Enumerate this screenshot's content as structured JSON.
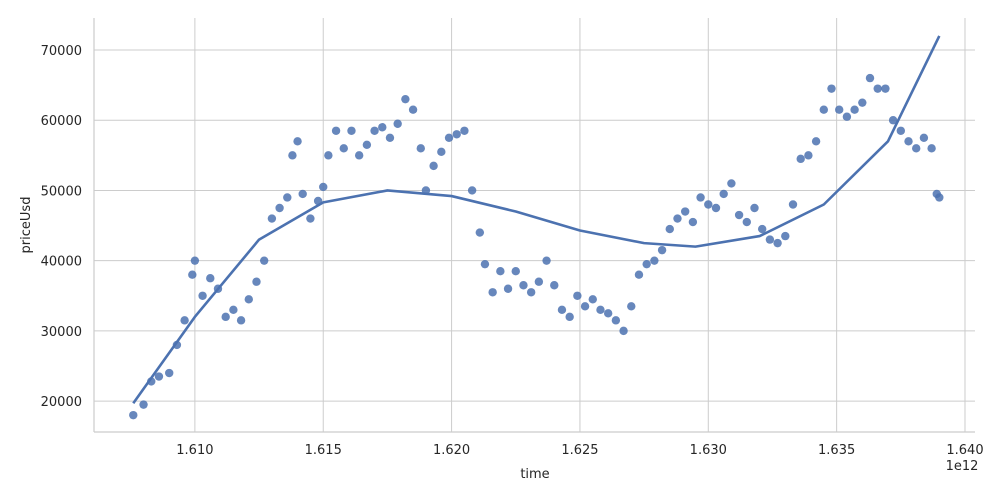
{
  "chart_data": {
    "type": "scatter",
    "x_label": "time",
    "y_label": "priceUsd",
    "x_offset_label": "1e12",
    "grid": true,
    "xlim": [
      1.60607,
      1.64039
    ],
    "ylim": [
      15600,
      74560
    ],
    "xticks": [
      {
        "value": 1.61,
        "label": "1.610"
      },
      {
        "value": 1.615,
        "label": "1.615"
      },
      {
        "value": 1.62,
        "label": "1.620"
      },
      {
        "value": 1.625,
        "label": "1.625"
      },
      {
        "value": 1.63,
        "label": "1.630"
      },
      {
        "value": 1.635,
        "label": "1.635"
      },
      {
        "value": 1.64,
        "label": "1.640"
      }
    ],
    "yticks": [
      20000,
      30000,
      40000,
      50000,
      60000,
      70000
    ],
    "points": {
      "color": "#4c72b0",
      "x": [
        1.6076,
        1.608,
        1.6083,
        1.6086,
        1.609,
        1.6093,
        1.6096,
        1.6099,
        1.61,
        1.6103,
        1.6106,
        1.6109,
        1.6112,
        1.6115,
        1.6118,
        1.6121,
        1.6124,
        1.6127,
        1.613,
        1.6133,
        1.6136,
        1.6138,
        1.614,
        1.6142,
        1.6145,
        1.6148,
        1.615,
        1.6152,
        1.6155,
        1.6158,
        1.6161,
        1.6164,
        1.6167,
        1.617,
        1.6173,
        1.6176,
        1.6179,
        1.6182,
        1.6185,
        1.6188,
        1.619,
        1.6193,
        1.6196,
        1.6199,
        1.6202,
        1.6205,
        1.6208,
        1.6211,
        1.6213,
        1.6216,
        1.6219,
        1.6222,
        1.6225,
        1.6228,
        1.6231,
        1.6234,
        1.6237,
        1.624,
        1.6243,
        1.6246,
        1.6249,
        1.6252,
        1.6255,
        1.6258,
        1.6261,
        1.6264,
        1.6267,
        1.627,
        1.6273,
        1.6276,
        1.6279,
        1.6282,
        1.6285,
        1.6288,
        1.6291,
        1.6294,
        1.6297,
        1.63,
        1.6303,
        1.6306,
        1.6309,
        1.6312,
        1.6315,
        1.6318,
        1.6321,
        1.6324,
        1.6327,
        1.633,
        1.6333,
        1.6336,
        1.6339,
        1.6342,
        1.6345,
        1.6348,
        1.6351,
        1.6354,
        1.6357,
        1.636,
        1.6363,
        1.6366,
        1.6369,
        1.6372,
        1.6375,
        1.6378,
        1.6381,
        1.6384,
        1.6387,
        1.6389,
        1.639
      ],
      "y": [
        18000,
        19500,
        22800,
        23500,
        24000,
        28000,
        31500,
        38000,
        40000,
        35000,
        37500,
        36000,
        32000,
        33000,
        31500,
        34500,
        37000,
        40000,
        46000,
        47500,
        49000,
        55000,
        57000,
        49500,
        46000,
        48500,
        50500,
        55000,
        58500,
        56000,
        58500,
        55000,
        56500,
        58500,
        59000,
        57500,
        59500,
        63000,
        61500,
        56000,
        50000,
        53500,
        55500,
        57500,
        58000,
        58500,
        50000,
        44000,
        39500,
        35500,
        38500,
        36000,
        38500,
        36500,
        35500,
        37000,
        40000,
        36500,
        33000,
        32000,
        35000,
        33500,
        34500,
        33000,
        32500,
        31500,
        30000,
        33500,
        38000,
        39500,
        40000,
        41500,
        44500,
        46000,
        47000,
        45500,
        49000,
        48000,
        47500,
        49500,
        51000,
        46500,
        45500,
        47500,
        44500,
        43000,
        42500,
        43500,
        48000,
        54500,
        55000,
        57000,
        61500,
        64500,
        61500,
        60500,
        61500,
        62500,
        66000,
        64500,
        64500,
        60000,
        58500,
        57000,
        56000,
        57500,
        56000,
        49500,
        49000
      ]
    },
    "fit": {
      "color": "#4c72b0",
      "x": [
        1.6076,
        1.61,
        1.6125,
        1.615,
        1.6175,
        1.62,
        1.6225,
        1.625,
        1.6275,
        1.6295,
        1.632,
        1.6345,
        1.637,
        1.639
      ],
      "y": [
        19700,
        32000,
        43000,
        48300,
        50000,
        49200,
        47000,
        44300,
        42500,
        42000,
        43500,
        48000,
        57000,
        72000
      ]
    }
  }
}
